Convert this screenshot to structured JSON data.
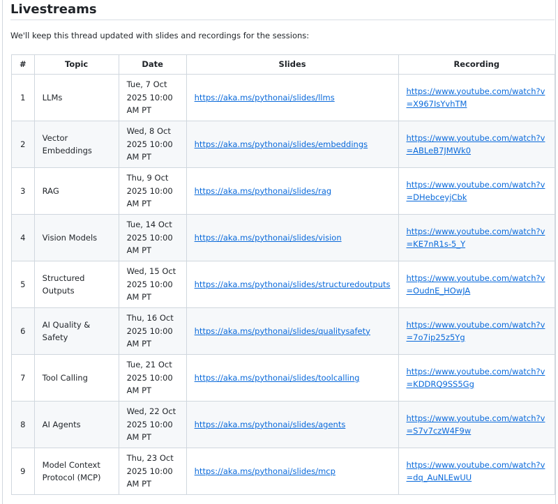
{
  "title": "Livestreams",
  "intro": "We'll keep this thread updated with slides and recordings for the sessions:",
  "headers": [
    "#",
    "Topic",
    "Date",
    "Slides",
    "Recording"
  ],
  "rows": [
    {
      "num": "1",
      "topic": "LLMs",
      "date": "Tue, 7 Oct 2025 10:00 AM PT",
      "slides": "https://aka.ms/pythonai/slides/llms",
      "recording": "https://www.youtube.com/watch?v=X967IsYvhTM"
    },
    {
      "num": "2",
      "topic": "Vector Embeddings",
      "date": "Wed, 8 Oct 2025 10:00 AM PT",
      "slides": "https://aka.ms/pythonai/slides/embeddings",
      "recording": "https://www.youtube.com/watch?v=ABLeB7JMWk0"
    },
    {
      "num": "3",
      "topic": "RAG",
      "date": "Thu, 9 Oct 2025 10:00 AM PT",
      "slides": "https://aka.ms/pythonai/slides/rag",
      "recording": "https://www.youtube.com/watch?v=DHebceyjCbk"
    },
    {
      "num": "4",
      "topic": "Vision Models",
      "date": "Tue, 14 Oct 2025 10:00 AM PT",
      "slides": "https://aka.ms/pythonai/slides/vision",
      "recording": "https://www.youtube.com/watch?v=KE7nR1s-5_Y"
    },
    {
      "num": "5",
      "topic": "Structured Outputs",
      "date": "Wed, 15 Oct 2025 10:00 AM PT",
      "slides": "https://aka.ms/pythonai/slides/structuredoutputs",
      "recording": "https://www.youtube.com/watch?v=OudnE_HOwJA"
    },
    {
      "num": "6",
      "topic": "AI Quality & Safety",
      "date": "Thu, 16 Oct 2025 10:00 AM PT",
      "slides": "https://aka.ms/pythonai/slides/qualitysafety",
      "recording": "https://www.youtube.com/watch?v=7o7ip25z5Yg"
    },
    {
      "num": "7",
      "topic": "Tool Calling",
      "date": "Tue, 21 Oct 2025 10:00 AM PT",
      "slides": "https://aka.ms/pythonai/slides/toolcalling",
      "recording": "https://www.youtube.com/watch?v=KDDRQ9SS5Gg"
    },
    {
      "num": "8",
      "topic": "AI Agents",
      "date": "Wed, 22 Oct 2025 10:00 AM PT",
      "slides": "https://aka.ms/pythonai/slides/agents",
      "recording": "https://www.youtube.com/watch?v=S7v7czW4F9w"
    },
    {
      "num": "9",
      "topic": "Model Context Protocol (MCP)",
      "date": "Thu, 23 Oct 2025 10:00 AM PT",
      "slides": "https://aka.ms/pythonai/slides/mcp",
      "recording": "https://www.youtube.com/watch?v=dq_AuNLEwUU"
    }
  ]
}
